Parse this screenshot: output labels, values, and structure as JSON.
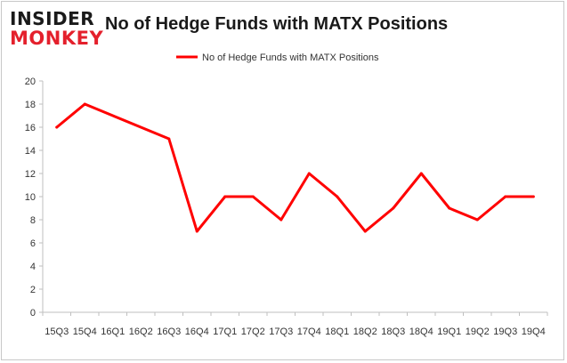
{
  "logo": {
    "line1": "INSIDER",
    "line2": "MONKEY",
    "color_line1": "#1a1a1a",
    "color_line2": "#e4202c"
  },
  "chart_data": {
    "type": "line",
    "title": "No of Hedge Funds with MATX Positions",
    "categories": [
      "15Q3",
      "15Q4",
      "16Q1",
      "16Q2",
      "16Q3",
      "16Q4",
      "17Q1",
      "17Q2",
      "17Q3",
      "17Q4",
      "18Q1",
      "18Q2",
      "18Q3",
      "18Q4",
      "19Q1",
      "19Q2",
      "19Q3",
      "19Q4"
    ],
    "series": [
      {
        "name": "No of Hedge Funds with MATX Positions",
        "color": "#ff0000",
        "values": [
          16,
          18,
          null,
          null,
          15,
          7,
          10,
          10,
          8,
          12,
          10,
          7,
          9,
          12,
          9,
          8,
          10,
          10
        ]
      }
    ],
    "yticks": [
      0,
      2,
      4,
      6,
      8,
      10,
      12,
      14,
      16,
      18,
      20
    ],
    "ylim": [
      0,
      20
    ],
    "grid": false,
    "legend": "top-center"
  }
}
